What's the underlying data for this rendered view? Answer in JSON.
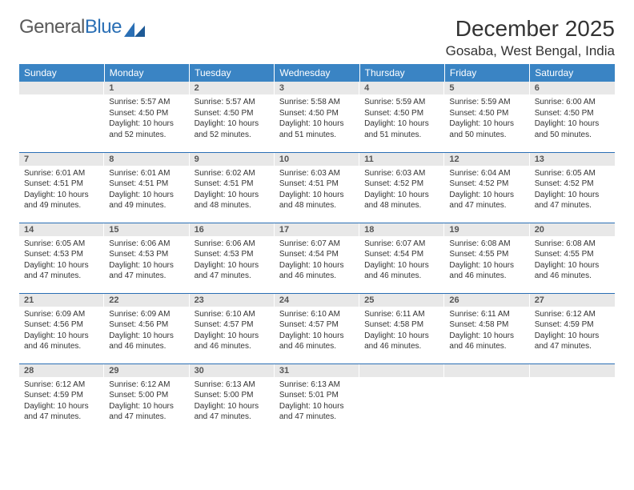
{
  "logo": {
    "text_general": "General",
    "text_blue": "Blue"
  },
  "header": {
    "month_title": "December 2025",
    "location": "Gosaba, West Bengal, India"
  },
  "colors": {
    "header_bg": "#3a84c4",
    "header_text": "#ffffff",
    "daynum_bg": "#e8e8e8",
    "border": "#2a6fb5",
    "logo_gray": "#5a5a5a",
    "logo_blue": "#2a6fb5"
  },
  "weekdays": [
    "Sunday",
    "Monday",
    "Tuesday",
    "Wednesday",
    "Thursday",
    "Friday",
    "Saturday"
  ],
  "layout": {
    "first_weekday_index": 1,
    "days_in_month": 31
  },
  "days": {
    "1": {
      "sunrise": "5:57 AM",
      "sunset": "4:50 PM",
      "daylight": "10 hours and 52 minutes."
    },
    "2": {
      "sunrise": "5:57 AM",
      "sunset": "4:50 PM",
      "daylight": "10 hours and 52 minutes."
    },
    "3": {
      "sunrise": "5:58 AM",
      "sunset": "4:50 PM",
      "daylight": "10 hours and 51 minutes."
    },
    "4": {
      "sunrise": "5:59 AM",
      "sunset": "4:50 PM",
      "daylight": "10 hours and 51 minutes."
    },
    "5": {
      "sunrise": "5:59 AM",
      "sunset": "4:50 PM",
      "daylight": "10 hours and 50 minutes."
    },
    "6": {
      "sunrise": "6:00 AM",
      "sunset": "4:50 PM",
      "daylight": "10 hours and 50 minutes."
    },
    "7": {
      "sunrise": "6:01 AM",
      "sunset": "4:51 PM",
      "daylight": "10 hours and 49 minutes."
    },
    "8": {
      "sunrise": "6:01 AM",
      "sunset": "4:51 PM",
      "daylight": "10 hours and 49 minutes."
    },
    "9": {
      "sunrise": "6:02 AM",
      "sunset": "4:51 PM",
      "daylight": "10 hours and 48 minutes."
    },
    "10": {
      "sunrise": "6:03 AM",
      "sunset": "4:51 PM",
      "daylight": "10 hours and 48 minutes."
    },
    "11": {
      "sunrise": "6:03 AM",
      "sunset": "4:52 PM",
      "daylight": "10 hours and 48 minutes."
    },
    "12": {
      "sunrise": "6:04 AM",
      "sunset": "4:52 PM",
      "daylight": "10 hours and 47 minutes."
    },
    "13": {
      "sunrise": "6:05 AM",
      "sunset": "4:52 PM",
      "daylight": "10 hours and 47 minutes."
    },
    "14": {
      "sunrise": "6:05 AM",
      "sunset": "4:53 PM",
      "daylight": "10 hours and 47 minutes."
    },
    "15": {
      "sunrise": "6:06 AM",
      "sunset": "4:53 PM",
      "daylight": "10 hours and 47 minutes."
    },
    "16": {
      "sunrise": "6:06 AM",
      "sunset": "4:53 PM",
      "daylight": "10 hours and 47 minutes."
    },
    "17": {
      "sunrise": "6:07 AM",
      "sunset": "4:54 PM",
      "daylight": "10 hours and 46 minutes."
    },
    "18": {
      "sunrise": "6:07 AM",
      "sunset": "4:54 PM",
      "daylight": "10 hours and 46 minutes."
    },
    "19": {
      "sunrise": "6:08 AM",
      "sunset": "4:55 PM",
      "daylight": "10 hours and 46 minutes."
    },
    "20": {
      "sunrise": "6:08 AM",
      "sunset": "4:55 PM",
      "daylight": "10 hours and 46 minutes."
    },
    "21": {
      "sunrise": "6:09 AM",
      "sunset": "4:56 PM",
      "daylight": "10 hours and 46 minutes."
    },
    "22": {
      "sunrise": "6:09 AM",
      "sunset": "4:56 PM",
      "daylight": "10 hours and 46 minutes."
    },
    "23": {
      "sunrise": "6:10 AM",
      "sunset": "4:57 PM",
      "daylight": "10 hours and 46 minutes."
    },
    "24": {
      "sunrise": "6:10 AM",
      "sunset": "4:57 PM",
      "daylight": "10 hours and 46 minutes."
    },
    "25": {
      "sunrise": "6:11 AM",
      "sunset": "4:58 PM",
      "daylight": "10 hours and 46 minutes."
    },
    "26": {
      "sunrise": "6:11 AM",
      "sunset": "4:58 PM",
      "daylight": "10 hours and 46 minutes."
    },
    "27": {
      "sunrise": "6:12 AM",
      "sunset": "4:59 PM",
      "daylight": "10 hours and 47 minutes."
    },
    "28": {
      "sunrise": "6:12 AM",
      "sunset": "4:59 PM",
      "daylight": "10 hours and 47 minutes."
    },
    "29": {
      "sunrise": "6:12 AM",
      "sunset": "5:00 PM",
      "daylight": "10 hours and 47 minutes."
    },
    "30": {
      "sunrise": "6:13 AM",
      "sunset": "5:00 PM",
      "daylight": "10 hours and 47 minutes."
    },
    "31": {
      "sunrise": "6:13 AM",
      "sunset": "5:01 PM",
      "daylight": "10 hours and 47 minutes."
    }
  },
  "labels": {
    "sunrise_prefix": "Sunrise: ",
    "sunset_prefix": "Sunset: ",
    "daylight_prefix": "Daylight: "
  }
}
